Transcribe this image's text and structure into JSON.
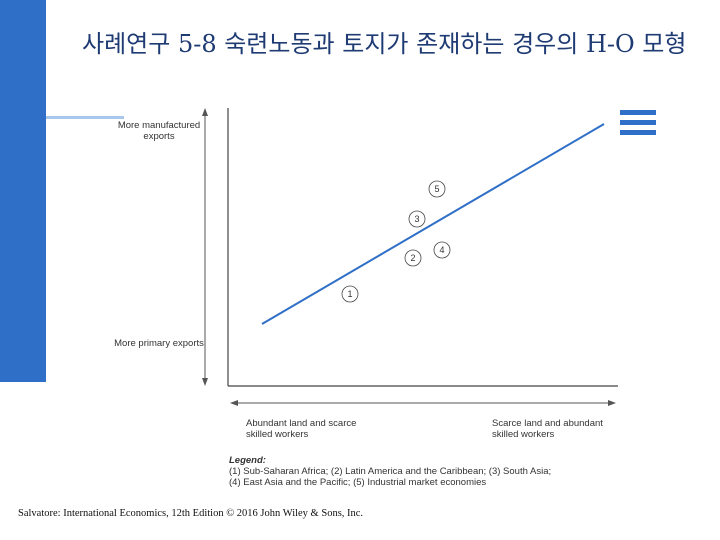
{
  "slide": {
    "title": "사례연구 5-8  숙련노동과 토지가 존재하는 경우의 H-O 모형",
    "source": "Salvatore: International Economics, 12th Edition © 2016 John Wiley & Sons, Inc."
  },
  "diagram": {
    "y_axis": {
      "top_label": "More manufactured exports",
      "bottom_label": "More primary exports"
    },
    "x_axis": {
      "left_label": "Abundant land and scarce skilled workers",
      "right_label": "Scarce land and abundant skilled workers"
    },
    "regions": [
      {
        "id": "1",
        "name": "Sub-Saharan Africa"
      },
      {
        "id": "2",
        "name": "Latin America and the Caribbean"
      },
      {
        "id": "3",
        "name": "South Asia"
      },
      {
        "id": "4",
        "name": "East Asia and the Pacific"
      },
      {
        "id": "5",
        "name": "Industrial market economies"
      }
    ],
    "legend": {
      "title": "Legend:",
      "line1": "(1) Sub-Saharan Africa; (2) Latin America and the Caribbean; (3) South Asia;",
      "line2": "(4) East Asia and the Pacific; (5) Industrial market economies"
    }
  }
}
